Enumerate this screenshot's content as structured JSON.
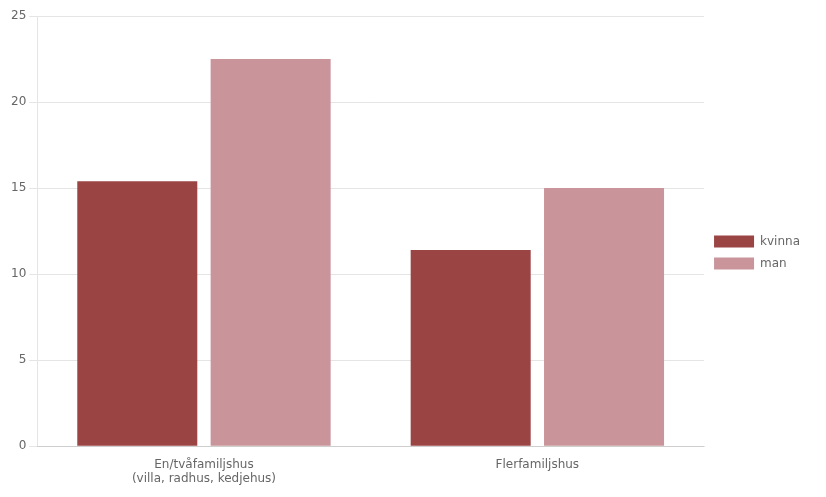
{
  "chart_data": {
    "type": "bar",
    "categories": [
      "En/tvåfamiljshus\n(villa, radhus, kedjehus)",
      "Flerfamiljshus"
    ],
    "series": [
      {
        "name": "kvinna",
        "color": "#9B4444",
        "values": [
          15.4,
          11.4
        ]
      },
      {
        "name": "man",
        "color": "#C9959A",
        "values": [
          22.5,
          15.0
        ]
      }
    ],
    "ylim": [
      0,
      25
    ],
    "yticks": [
      0,
      5,
      10,
      15,
      20,
      25
    ],
    "grid": true,
    "legend": "right"
  }
}
